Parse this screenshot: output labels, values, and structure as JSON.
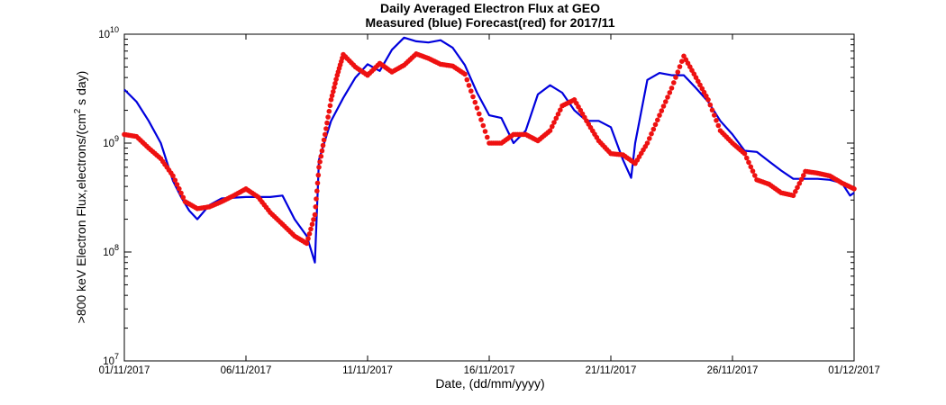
{
  "chart_data": {
    "type": "line",
    "title": "Daily Averaged Electron Flux at GEO",
    "subtitle": "Measured (blue) Forecast(red) for 2017/11",
    "xlabel": "Date, (dd/mm/yyyy)",
    "ylabel": ">800 keV Electron Flux,electrons/(cm² s day)",
    "ylabel_parts": {
      "prefix": ">800 keV Electron Flux,electrons/(cm",
      "sup": "2",
      "suffix": " s day)"
    },
    "yscale": "log",
    "xlim": [
      "2017-11-01",
      "2017-12-01"
    ],
    "ylim": [
      10000000.0,
      10000000000.0
    ],
    "grid": false,
    "xticks": [
      {
        "date": "2017-11-01",
        "label": "01/11/2017"
      },
      {
        "date": "2017-11-06",
        "label": "06/11/2017"
      },
      {
        "date": "2017-11-11",
        "label": "11/11/2017"
      },
      {
        "date": "2017-11-16",
        "label": "16/11/2017"
      },
      {
        "date": "2017-11-21",
        "label": "21/11/2017"
      },
      {
        "date": "2017-11-26",
        "label": "26/11/2017"
      },
      {
        "date": "2017-12-01",
        "label": "01/12/2017"
      }
    ],
    "yticks": [
      {
        "value": 10000000.0,
        "base": "10",
        "exp": "7"
      },
      {
        "value": 100000000.0,
        "base": "10",
        "exp": "8"
      },
      {
        "value": 1000000000.0,
        "base": "10",
        "exp": "9"
      },
      {
        "value": 10000000000.0,
        "base": "10",
        "exp": "10"
      }
    ],
    "series": [
      {
        "color": "#0000dd",
        "style": "line",
        "x": [
          "2017-11-01",
          "2017-11-01 12:00",
          "2017-11-02",
          "2017-11-02 12:00",
          "2017-11-03",
          "2017-11-03 08:00",
          "2017-11-03 16:00",
          "2017-11-04",
          "2017-11-04 12:00",
          "2017-11-05",
          "2017-11-06",
          "2017-11-07",
          "2017-11-07 12:00",
          "2017-11-08",
          "2017-11-08 12:00",
          "2017-11-08 20:00",
          "2017-11-09",
          "2017-11-09 12:00",
          "2017-11-10",
          "2017-11-10 12:00",
          "2017-11-11",
          "2017-11-11 12:00",
          "2017-11-12",
          "2017-11-12 12:00",
          "2017-11-13",
          "2017-11-13 12:00",
          "2017-11-14",
          "2017-11-14 12:00",
          "2017-11-15",
          "2017-11-15 12:00",
          "2017-11-16",
          "2017-11-16 12:00",
          "2017-11-17",
          "2017-11-17 12:00",
          "2017-11-18",
          "2017-11-18 12:00",
          "2017-11-19",
          "2017-11-19 12:00",
          "2017-11-20",
          "2017-11-20 12:00",
          "2017-11-21",
          "2017-11-21 12:00",
          "2017-11-21 20:00",
          "2017-11-22",
          "2017-11-22 12:00",
          "2017-11-23",
          "2017-11-23 12:00",
          "2017-11-24",
          "2017-11-24 12:00",
          "2017-11-25",
          "2017-11-25 12:00",
          "2017-11-26",
          "2017-11-26 12:00",
          "2017-11-27",
          "2017-11-27 12:00",
          "2017-11-28",
          "2017-11-28 12:00",
          "2017-11-29",
          "2017-11-29 12:00",
          "2017-11-30",
          "2017-11-30 12:00",
          "2017-11-30 20:00",
          "2017-12-01"
        ],
        "y": [
          3100000000.0,
          2400000000.0,
          1600000000.0,
          1000000000.0,
          450000000.0,
          320000000.0,
          240000000.0,
          200000000.0,
          270000000.0,
          310000000.0,
          320000000.0,
          320000000.0,
          330000000.0,
          200000000.0,
          140000000.0,
          80000000.0,
          700000000.0,
          1600000000.0,
          2600000000.0,
          4000000000.0,
          5300000000.0,
          4600000000.0,
          7200000000.0,
          9300000000.0,
          8600000000.0,
          8400000000.0,
          8800000000.0,
          7500000000.0,
          5200000000.0,
          2900000000.0,
          1800000000.0,
          1700000000.0,
          1000000000.0,
          1300000000.0,
          2800000000.0,
          3400000000.0,
          2900000000.0,
          2000000000.0,
          1600000000.0,
          1600000000.0,
          1400000000.0,
          700000000.0,
          480000000.0,
          1000000000.0,
          3800000000.0,
          4400000000.0,
          4200000000.0,
          4200000000.0,
          3200000000.0,
          2400000000.0,
          1600000000.0,
          1200000000.0,
          850000000.0,
          830000000.0,
          680000000.0,
          560000000.0,
          470000000.0,
          470000000.0,
          470000000.0,
          460000000.0,
          430000000.0,
          330000000.0,
          350000000.0
        ]
      },
      {
        "color": "#ee1111",
        "style": "dots",
        "x": [
          "2017-11-01",
          "2017-11-01 12:00",
          "2017-11-02",
          "2017-11-02 12:00",
          "2017-11-03",
          "2017-11-03 12:00",
          "2017-11-04",
          "2017-11-04 12:00",
          "2017-11-05",
          "2017-11-05 12:00",
          "2017-11-06",
          "2017-11-06 12:00",
          "2017-11-07",
          "2017-11-07 12:00",
          "2017-11-08",
          "2017-11-08 12:00",
          "2017-11-08 20:00",
          "2017-11-09",
          "2017-11-09 06:00",
          "2017-11-09 12:00",
          "2017-11-09 18:00",
          "2017-11-10",
          "2017-11-10 12:00",
          "2017-11-11",
          "2017-11-11 12:00",
          "2017-11-12",
          "2017-11-12 12:00",
          "2017-11-13",
          "2017-11-13 12:00",
          "2017-11-14",
          "2017-11-14 12:00",
          "2017-11-15",
          "2017-11-15 12:00",
          "2017-11-16",
          "2017-11-16 12:00",
          "2017-11-17",
          "2017-11-17 12:00",
          "2017-11-18",
          "2017-11-18 12:00",
          "2017-11-19",
          "2017-11-19 12:00",
          "2017-11-20",
          "2017-11-20 12:00",
          "2017-11-21",
          "2017-11-21 12:00",
          "2017-11-22",
          "2017-11-22 12:00",
          "2017-11-23",
          "2017-11-23 12:00",
          "2017-11-24",
          "2017-11-24 12:00",
          "2017-11-25",
          "2017-11-25 12:00",
          "2017-11-26",
          "2017-11-26 12:00",
          "2017-11-27",
          "2017-11-27 12:00",
          "2017-11-28",
          "2017-11-28 12:00",
          "2017-11-29",
          "2017-11-29 12:00",
          "2017-11-30",
          "2017-11-30 12:00",
          "2017-12-01"
        ],
        "y": [
          1200000000.0,
          1150000000.0,
          900000000.0,
          720000000.0,
          500000000.0,
          290000000.0,
          250000000.0,
          260000000.0,
          290000000.0,
          330000000.0,
          380000000.0,
          320000000.0,
          230000000.0,
          180000000.0,
          140000000.0,
          120000000.0,
          220000000.0,
          600000000.0,
          1200000000.0,
          2500000000.0,
          4200000000.0,
          6500000000.0,
          5000000000.0,
          4200000000.0,
          5400000000.0,
          4500000000.0,
          5200000000.0,
          6600000000.0,
          6000000000.0,
          5300000000.0,
          5100000000.0,
          4300000000.0,
          2100000000.0,
          1000000000.0,
          1000000000.0,
          1200000000.0,
          1200000000.0,
          1050000000.0,
          1300000000.0,
          2200000000.0,
          2500000000.0,
          1600000000.0,
          1050000000.0,
          800000000.0,
          780000000.0,
          650000000.0,
          1000000000.0,
          1800000000.0,
          3200000000.0,
          6300000000.0,
          4000000000.0,
          2500000000.0,
          1300000000.0,
          1000000000.0,
          800000000.0,
          460000000.0,
          420000000.0,
          350000000.0,
          330000000.0,
          550000000.0,
          530000000.0,
          500000000.0,
          430000000.0,
          380000000.0
        ]
      }
    ]
  }
}
